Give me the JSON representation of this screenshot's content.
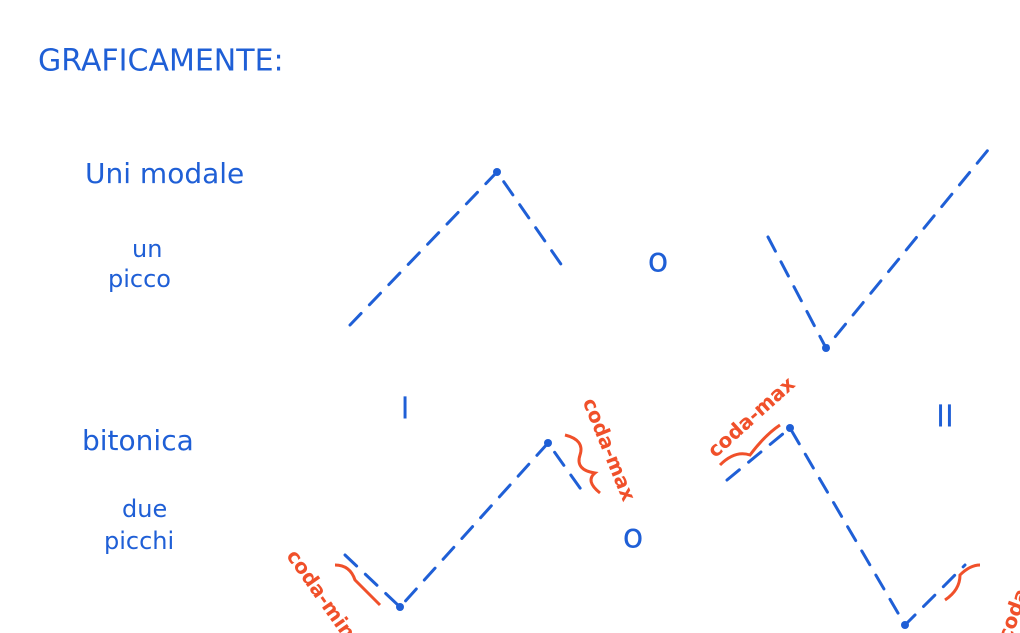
{
  "header": {
    "title": "GRAFICAMENTE:"
  },
  "rows": [
    {
      "label": "Uni modale",
      "sublabel": [
        "un",
        "picco"
      ]
    },
    {
      "label": "bitonica",
      "sublabel": [
        "due",
        "picchi"
      ]
    }
  ],
  "cases": [
    "I",
    "II"
  ],
  "separators": [
    "o",
    "o"
  ],
  "annotations": [
    "coda-max",
    "coda-max",
    "coda-min",
    "coda-min"
  ]
}
